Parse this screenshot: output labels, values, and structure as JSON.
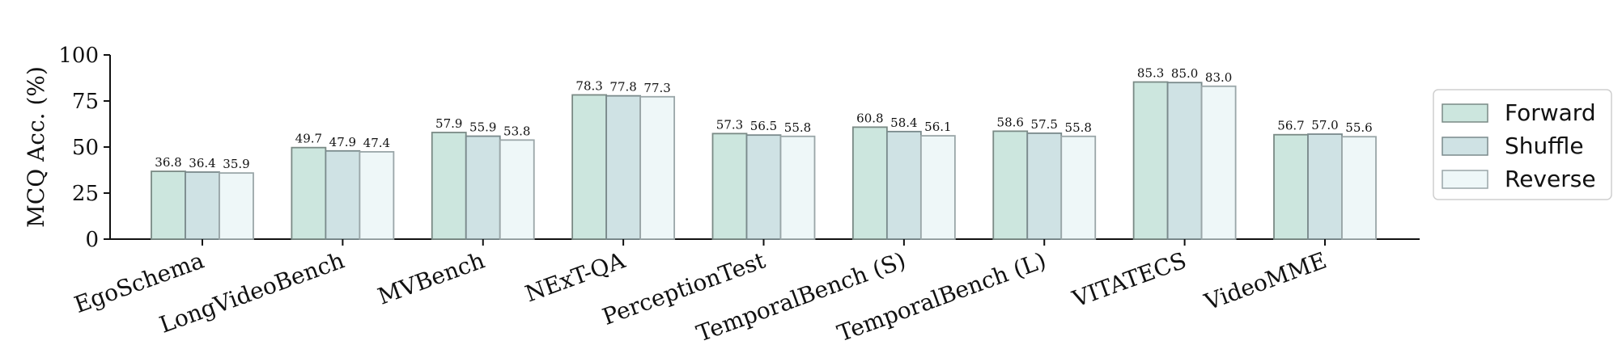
{
  "chart_data": {
    "type": "bar",
    "title": "",
    "xlabel": "",
    "ylabel": "MCQ Acc. (%)",
    "ylim": [
      0,
      100
    ],
    "yticks": [
      0,
      25,
      50,
      75,
      100
    ],
    "grid": false,
    "legend_position": "right",
    "categories": [
      "EgoSchema",
      "LongVideoBench",
      "MVBench",
      "NExT-QA",
      "PerceptionTest",
      "TemporalBench (S)",
      "TemporalBench (L)",
      "VITATECS",
      "VideoMME"
    ],
    "series": [
      {
        "name": "Forward",
        "color": "#cce6de",
        "edge": "#7a8a85",
        "values": [
          36.8,
          49.7,
          57.9,
          78.3,
          57.3,
          60.8,
          58.6,
          85.3,
          56.7
        ]
      },
      {
        "name": "Shuffle",
        "color": "#cfe2e4",
        "edge": "#7a8a8c",
        "values": [
          36.4,
          47.9,
          55.9,
          77.8,
          56.5,
          58.4,
          57.5,
          85.0,
          57.0
        ]
      },
      {
        "name": "Reverse",
        "color": "#eef7f8",
        "edge": "#9aa6a8",
        "values": [
          35.9,
          47.4,
          53.8,
          77.3,
          55.8,
          56.1,
          55.8,
          83.0,
          55.6
        ]
      }
    ]
  }
}
